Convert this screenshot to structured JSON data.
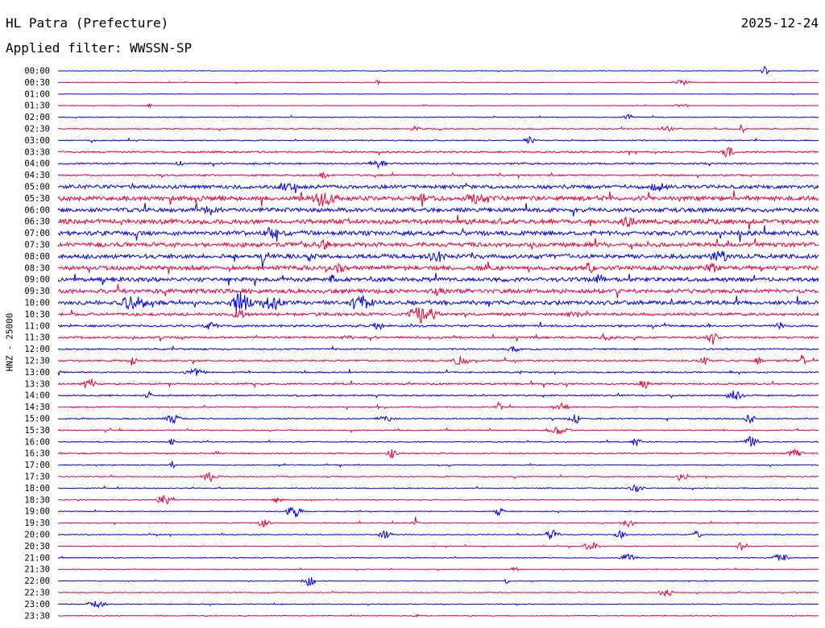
{
  "header": {
    "station": "HL Patra (Prefecture)",
    "date": "2025-12-24",
    "filter": "Applied filter: WWSSN-SP"
  },
  "colors": {
    "blue": "#0000ee",
    "red": "#ee0033"
  },
  "chart_data": {
    "type": "line",
    "ylabel": "HNZ - 25000",
    "trace_colors": [
      "#0000ee",
      "#ee0033"
    ],
    "hours": [
      "00:00",
      "00:30",
      "01:00",
      "01:30",
      "02:00",
      "02:30",
      "03:00",
      "03:30",
      "04:00",
      "04:30",
      "05:00",
      "05:30",
      "06:00",
      "06:30",
      "07:00",
      "07:30",
      "08:00",
      "08:30",
      "09:00",
      "09:30",
      "10:00",
      "10:30",
      "11:00",
      "11:30",
      "12:00",
      "12:30",
      "13:00",
      "13:30",
      "14:00",
      "14:30",
      "15:00",
      "15:30",
      "16:00",
      "16:30",
      "17:00",
      "17:30",
      "18:00",
      "18:30",
      "19:00",
      "19:30",
      "20:00",
      "20:30",
      "21:00",
      "21:30",
      "22:00",
      "22:30",
      "23:00",
      "23:30"
    ],
    "noise": [
      0.4,
      0.5,
      0.3,
      0.4,
      0.6,
      0.8,
      0.8,
      1.2,
      1.2,
      1.2,
      2.6,
      3.2,
      3.0,
      3.2,
      3.2,
      3.0,
      3.0,
      3.0,
      2.8,
      2.8,
      2.8,
      2.0,
      1.5,
      1.4,
      1.1,
      1.2,
      1.0,
      1.2,
      1.0,
      0.9,
      0.8,
      0.8,
      0.7,
      0.9,
      0.7,
      0.7,
      0.7,
      0.6,
      0.6,
      0.7,
      0.6,
      0.6,
      0.6,
      0.5,
      0.5,
      0.6,
      0.6,
      0.5
    ],
    "events": [
      [
        [
          0.93,
          6,
          3
        ]
      ],
      [
        [
          0.42,
          3,
          2
        ],
        [
          0.82,
          3,
          6
        ]
      ],
      [],
      [
        [
          0.12,
          2,
          2
        ],
        [
          0.82,
          2,
          6
        ]
      ],
      [
        [
          0.75,
          3,
          4
        ]
      ],
      [
        [
          0.47,
          3,
          4
        ],
        [
          0.8,
          3,
          5
        ],
        [
          0.9,
          6,
          3
        ]
      ],
      [
        [
          0.62,
          4,
          4
        ]
      ],
      [
        [
          0.88,
          6,
          5
        ]
      ],
      [
        [
          0.42,
          5,
          6
        ],
        [
          0.16,
          3,
          3
        ]
      ],
      [
        [
          0.35,
          4,
          3
        ]
      ],
      [
        [
          0.3,
          4,
          8
        ],
        [
          0.79,
          4,
          6
        ]
      ],
      [
        [
          0.35,
          8,
          8
        ],
        [
          0.48,
          12,
          2
        ],
        [
          0.55,
          5,
          8
        ]
      ],
      [
        [
          0.2,
          4,
          6
        ]
      ],
      [
        [
          0.75,
          5,
          5
        ]
      ],
      [
        [
          0.28,
          8,
          5
        ]
      ],
      [
        [
          0.35,
          6,
          4
        ]
      ],
      [
        [
          0.5,
          7,
          6
        ],
        [
          0.87,
          7,
          6
        ],
        [
          0.27,
          6,
          2
        ]
      ],
      [
        [
          0.37,
          5,
          4
        ],
        [
          0.7,
          5,
          4
        ],
        [
          0.86,
          6,
          4
        ]
      ],
      [
        [
          0.36,
          7,
          2
        ],
        [
          0.71,
          6,
          4
        ]
      ],
      [
        [
          0.5,
          4,
          5
        ]
      ],
      [
        [
          0.1,
          8,
          10
        ],
        [
          0.24,
          11,
          8
        ],
        [
          0.28,
          9,
          8
        ],
        [
          0.4,
          7,
          8
        ]
      ],
      [
        [
          0.48,
          12,
          10
        ],
        [
          0.24,
          5,
          6
        ],
        [
          0.68,
          4,
          5
        ]
      ],
      [
        [
          0.2,
          4,
          5
        ],
        [
          0.42,
          4,
          5
        ],
        [
          0.95,
          6,
          3
        ]
      ],
      [
        [
          0.38,
          4,
          4
        ],
        [
          0.72,
          4,
          4
        ],
        [
          0.86,
          5,
          6
        ]
      ],
      [
        [
          0.6,
          3,
          5
        ]
      ],
      [
        [
          0.1,
          4,
          4
        ],
        [
          0.53,
          6,
          6
        ],
        [
          0.85,
          5,
          4
        ],
        [
          0.92,
          5,
          3
        ],
        [
          0.98,
          6,
          2
        ]
      ],
      [
        [
          0.0,
          6,
          2
        ],
        [
          0.18,
          4,
          8
        ]
      ],
      [
        [
          0.04,
          5,
          6
        ],
        [
          0.77,
          6,
          4
        ]
      ],
      [
        [
          0.12,
          4,
          3
        ],
        [
          0.89,
          6,
          6
        ]
      ],
      [
        [
          0.58,
          6,
          3
        ],
        [
          0.66,
          5,
          6
        ]
      ],
      [
        [
          0.15,
          6,
          6
        ],
        [
          0.43,
          4,
          6
        ],
        [
          0.68,
          6,
          5
        ],
        [
          0.91,
          6,
          4
        ]
      ],
      [
        [
          0.66,
          5,
          8
        ]
      ],
      [
        [
          0.15,
          5,
          2
        ],
        [
          0.76,
          5,
          4
        ],
        [
          0.91,
          6,
          6
        ]
      ],
      [
        [
          0.44,
          6,
          4
        ],
        [
          0.97,
          5,
          6
        ]
      ],
      [
        [
          0.15,
          5,
          2
        ]
      ],
      [
        [
          0.2,
          7,
          6
        ],
        [
          0.82,
          6,
          4
        ]
      ],
      [
        [
          0.76,
          4,
          6
        ]
      ],
      [
        [
          0.14,
          6,
          6
        ],
        [
          0.29,
          4,
          4
        ]
      ],
      [
        [
          0.31,
          7,
          6
        ],
        [
          0.58,
          5,
          4
        ]
      ],
      [
        [
          0.47,
          12,
          3
        ],
        [
          0.27,
          4,
          5
        ],
        [
          0.75,
          5,
          5
        ]
      ],
      [
        [
          0.65,
          8,
          5
        ],
        [
          0.74,
          6,
          4
        ],
        [
          0.43,
          5,
          5
        ],
        [
          0.84,
          5,
          4
        ]
      ],
      [
        [
          0.7,
          6,
          6
        ],
        [
          0.9,
          6,
          4
        ]
      ],
      [
        [
          0.95,
          6,
          6
        ],
        [
          0.75,
          5,
          6
        ]
      ],
      [
        [
          0.6,
          3,
          3
        ]
      ],
      [
        [
          0.33,
          6,
          5
        ],
        [
          0.59,
          4,
          2
        ]
      ],
      [
        [
          0.8,
          5,
          6
        ]
      ],
      [
        [
          0.05,
          4,
          8
        ]
      ],
      [
        [
          0.47,
          4,
          2
        ]
      ]
    ]
  }
}
